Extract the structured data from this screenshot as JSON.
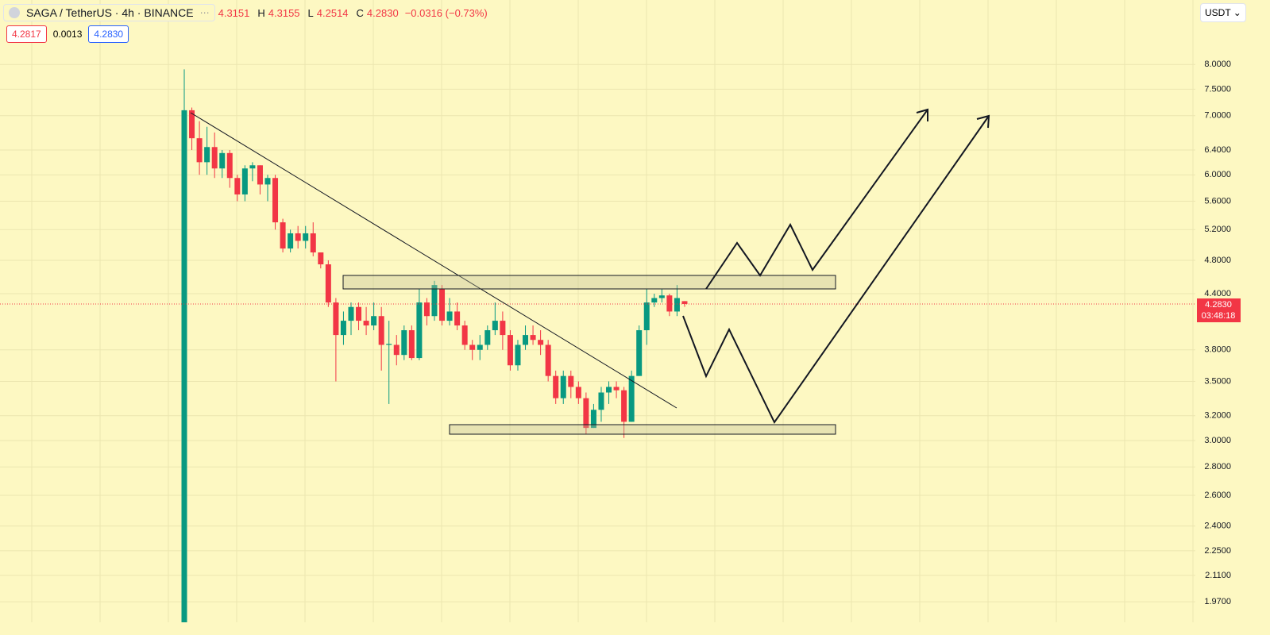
{
  "header": {
    "symbol": "SAGA / TetherUS · 4h · BINANCE",
    "open": "4.3151",
    "high_label": "H",
    "high": "4.3155",
    "low_label": "L",
    "low": "4.2514",
    "close_label": "C",
    "close": "4.2830",
    "change": "−0.0316 (−0.73%)",
    "bid": "4.2817",
    "spread": "0.0013",
    "ask": "4.2830",
    "currency": "USDT",
    "last_price": "4.2830",
    "countdown": "03:48:18"
  },
  "chart_data": {
    "type": "candlestick",
    "log_scale": true,
    "grid": true,
    "up_color": "#089981",
    "down_color": "#f23645",
    "ylim": [
      1.867,
      9.466
    ],
    "yticks": [
      {
        "value": 8,
        "label": "8.0000"
      },
      {
        "value": 7.5,
        "label": "7.5000"
      },
      {
        "value": 7,
        "label": "7.0000"
      },
      {
        "value": 6.4,
        "label": "6.4000"
      },
      {
        "value": 6,
        "label": "6.0000"
      },
      {
        "value": 5.6,
        "label": "5.6000"
      },
      {
        "value": 5.2,
        "label": "5.2000"
      },
      {
        "value": 4.8,
        "label": "4.8000"
      },
      {
        "value": 4.4,
        "label": "4.4000"
      },
      {
        "value": 3.8,
        "label": "3.8000"
      },
      {
        "value": 3.5,
        "label": "3.5000"
      },
      {
        "value": 3.2,
        "label": "3.2000"
      },
      {
        "value": 3,
        "label": "3.0000"
      },
      {
        "value": 2.8,
        "label": "2.8000"
      },
      {
        "value": 2.6,
        "label": "2.6000"
      },
      {
        "value": 2.4,
        "label": "2.4000"
      },
      {
        "value": 2.25,
        "label": "2.2500"
      },
      {
        "value": 2.11,
        "label": "2.1100"
      },
      {
        "value": 1.97,
        "label": "1.9700"
      }
    ],
    "open": [
      1.8,
      7.1,
      6.6,
      6.2,
      6.45,
      6.1,
      6.35,
      5.95,
      5.7,
      6.1,
      6.15,
      5.85,
      5.95,
      5.3,
      4.95,
      5.15,
      5.05,
      5.15,
      4.9,
      4.75,
      4.3,
      3.95,
      4.1,
      4.25,
      4.1,
      4.05,
      4.15,
      3.85,
      3.85,
      3.75,
      4.0,
      3.72,
      4.3,
      4.15,
      4.45,
      4.1,
      4.2,
      4.05,
      3.85,
      3.8,
      3.85,
      4.0,
      4.1,
      3.95,
      3.65,
      3.85,
      3.95,
      3.9,
      3.85,
      3.55,
      3.35,
      3.55,
      3.45,
      3.35,
      3.1,
      3.25,
      3.4,
      3.45,
      3.42,
      3.15,
      3.55,
      4.0,
      4.3,
      4.35,
      4.38,
      4.2,
      4.3151
    ],
    "high": [
      7.9,
      7.15,
      6.9,
      6.8,
      6.7,
      6.4,
      6.4,
      6.0,
      6.15,
      6.2,
      6.15,
      6.0,
      6.0,
      5.35,
      5.2,
      5.25,
      5.25,
      5.3,
      4.9,
      4.8,
      4.35,
      4.2,
      4.3,
      4.3,
      4.25,
      4.3,
      4.25,
      4.1,
      3.95,
      4.05,
      4.05,
      4.45,
      4.35,
      4.55,
      4.5,
      4.35,
      4.3,
      4.1,
      3.9,
      3.95,
      4.05,
      4.3,
      4.2,
      4.0,
      3.9,
      4.05,
      4.05,
      4.0,
      3.9,
      3.6,
      3.6,
      3.6,
      3.5,
      3.4,
      3.3,
      3.45,
      3.5,
      3.5,
      3.45,
      3.6,
      4.05,
      4.45,
      4.4,
      4.45,
      4.4,
      4.5,
      4.3155
    ],
    "low": [
      1.8,
      6.4,
      6.0,
      6.0,
      5.95,
      5.95,
      5.8,
      5.6,
      5.6,
      5.9,
      5.7,
      5.6,
      5.2,
      4.9,
      4.9,
      4.95,
      4.95,
      4.85,
      4.7,
      4.25,
      3.5,
      3.85,
      3.95,
      4.0,
      3.95,
      4.0,
      3.6,
      3.3,
      3.65,
      3.7,
      3.7,
      3.7,
      4.05,
      4.1,
      4.05,
      4.05,
      4.0,
      3.8,
      3.7,
      3.7,
      3.8,
      3.95,
      3.8,
      3.6,
      3.6,
      3.8,
      3.85,
      3.75,
      3.5,
      3.3,
      3.3,
      3.35,
      3.3,
      3.05,
      3.1,
      3.15,
      3.3,
      3.35,
      3.02,
      3.15,
      3.55,
      3.85,
      4.25,
      4.3,
      4.15,
      4.15,
      4.2514
    ],
    "close": [
      7.1,
      6.6,
      6.2,
      6.45,
      6.1,
      6.35,
      5.95,
      5.7,
      6.1,
      6.15,
      5.85,
      5.95,
      5.3,
      4.95,
      5.15,
      5.05,
      5.15,
      4.9,
      4.75,
      4.3,
      3.95,
      4.1,
      4.25,
      4.1,
      4.05,
      4.15,
      3.85,
      3.86,
      3.75,
      4.0,
      3.72,
      4.3,
      4.15,
      4.5,
      4.1,
      4.2,
      4.05,
      3.85,
      3.8,
      3.85,
      4.0,
      4.1,
      3.95,
      3.65,
      3.85,
      3.95,
      3.9,
      3.85,
      3.55,
      3.35,
      3.55,
      3.45,
      3.35,
      3.1,
      3.25,
      3.4,
      3.45,
      3.42,
      3.15,
      3.55,
      4.0,
      4.3,
      4.35,
      4.38,
      4.2,
      4.35,
      4.283
    ]
  }
}
